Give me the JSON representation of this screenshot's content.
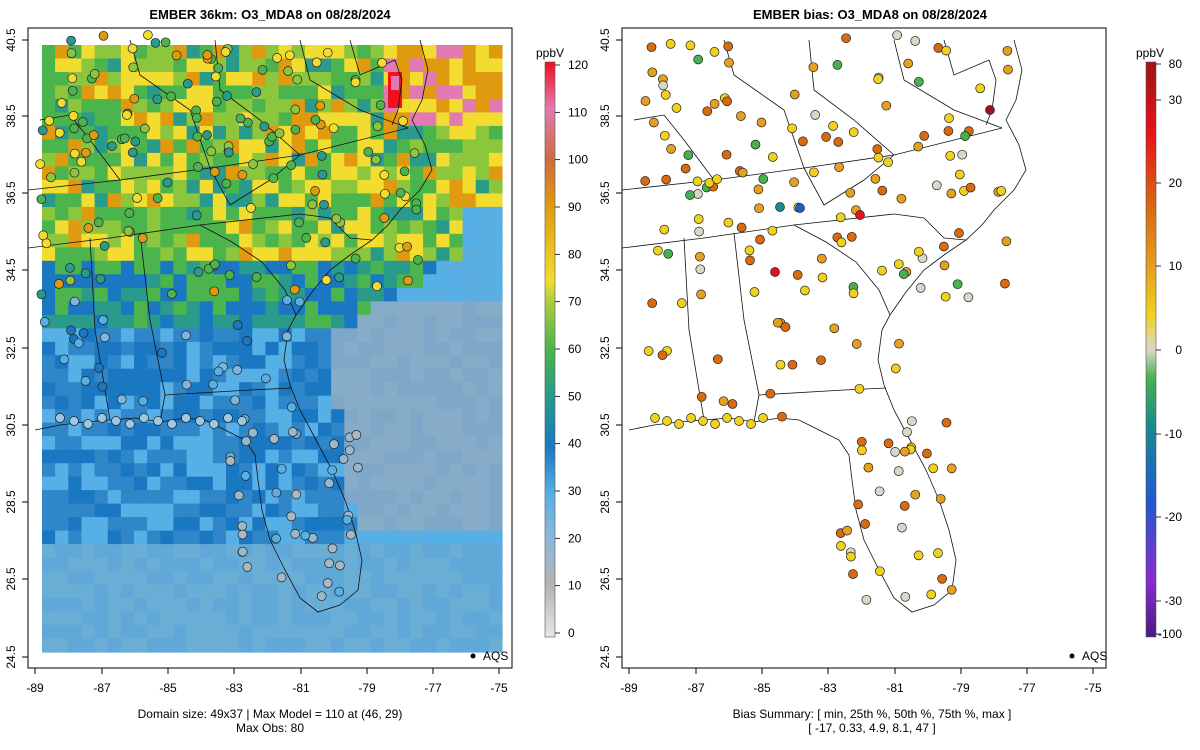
{
  "map_left": {
    "title": "EMBER 36km: O3_MDA8 on 08/28/2024",
    "unit": "ppbV",
    "x_ticks": [
      "-89",
      "-87",
      "-85",
      "-83",
      "-81",
      "-79",
      "-77",
      "-75"
    ],
    "y_ticks": [
      "24.5",
      "26.5",
      "28.5",
      "30.5",
      "32.5",
      "34.5",
      "36.5",
      "38.5",
      "40.5"
    ],
    "colorbar_ticks": [
      "0",
      "10",
      "20",
      "30",
      "40",
      "50",
      "60",
      "70",
      "80",
      "90",
      "100",
      "110",
      "120"
    ],
    "legend_label": "AQS",
    "caption_line1": "Domain size: 49x37 | Max Model = 110 at (46, 29)",
    "caption_line2": "Max Obs: 80",
    "colors": {
      "low": "#e6e6e6",
      "gray": "#8c8c8c",
      "light_blue": "#56b0e6",
      "blue": "#1a78c2",
      "teal": "#2a9a8a",
      "green": "#4cb44c",
      "yellow": "#f2dc30",
      "orange": "#e09a10",
      "red": "#f0101e",
      "pink": "#e07ab0"
    }
  },
  "map_right": {
    "title": "EMBER bias: O3_MDA8 on 08/28/2024",
    "unit": "ppbV",
    "x_ticks": [
      "-89",
      "-87",
      "-85",
      "-83",
      "-81",
      "-79",
      "-77",
      "-75"
    ],
    "y_ticks": [
      "24.5",
      "26.5",
      "28.5",
      "30.5",
      "32.5",
      "34.5",
      "36.5",
      "38.5",
      "40.5"
    ],
    "colorbar_ticks": [
      "80",
      "30",
      "20",
      "10",
      "0",
      "-10",
      "-20",
      "-30",
      "-100"
    ],
    "legend_label": "AQS",
    "caption_line1": "Bias Summary: [ min, 25th %, 50th %, 75th %, max ]",
    "caption_line2": "[ -17,  0.33,  4.9,  8.1,  47 ]",
    "colors": {
      "dark_red": "#a01414",
      "red": "#e8101a",
      "orange": "#d86a10",
      "amber": "#e6a020",
      "yellow": "#f0d21e",
      "light": "#d8d8c8",
      "green": "#48b050",
      "teal": "#1a8c8c",
      "blue": "#1e5ad2",
      "purple": "#8a2ad2",
      "dark_purple": "#4a1a80"
    }
  }
}
